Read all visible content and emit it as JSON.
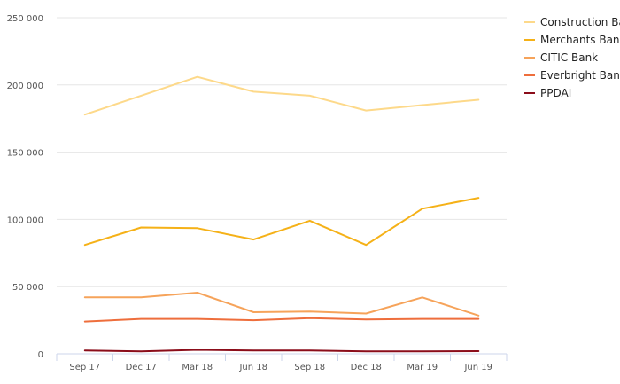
{
  "chart_data": {
    "type": "line",
    "title": "",
    "xlabel": "",
    "ylabel": "",
    "categories": [
      "Sep 17",
      "Dec 17",
      "Mar 18",
      "Jun 18",
      "Sep 18",
      "Dec 18",
      "Mar 19",
      "Jun 19"
    ],
    "y_ticks": [
      0,
      50000,
      100000,
      150000,
      200000,
      250000
    ],
    "y_tick_labels": [
      "0",
      "50 000",
      "100 000",
      "150 000",
      "200 000",
      "250 000"
    ],
    "ylim": [
      0,
      250000
    ],
    "grid": "horizontal",
    "legend_position": "top-right",
    "series": [
      {
        "name": "Construction Bank",
        "color": "#fdd98a",
        "values": [
          178000,
          192000,
          206000,
          195000,
          192000,
          181000,
          185000,
          189000
        ]
      },
      {
        "name": "Merchants Bank",
        "color": "#f5b117",
        "values": [
          81000,
          94000,
          93500,
          85000,
          99000,
          81000,
          108000,
          116000
        ]
      },
      {
        "name": "CITIC Bank",
        "color": "#f6a35a",
        "values": [
          42000,
          42000,
          45500,
          31000,
          31500,
          30000,
          42000,
          28500
        ]
      },
      {
        "name": "Everbright Bank",
        "color": "#ee6e3c",
        "values": [
          24000,
          26000,
          26000,
          25000,
          26500,
          25500,
          26000,
          26000
        ]
      },
      {
        "name": "PPDAI",
        "color": "#8b0d1a",
        "values": [
          2500,
          1800,
          3000,
          2500,
          2500,
          1800,
          1800,
          2000
        ]
      }
    ]
  }
}
